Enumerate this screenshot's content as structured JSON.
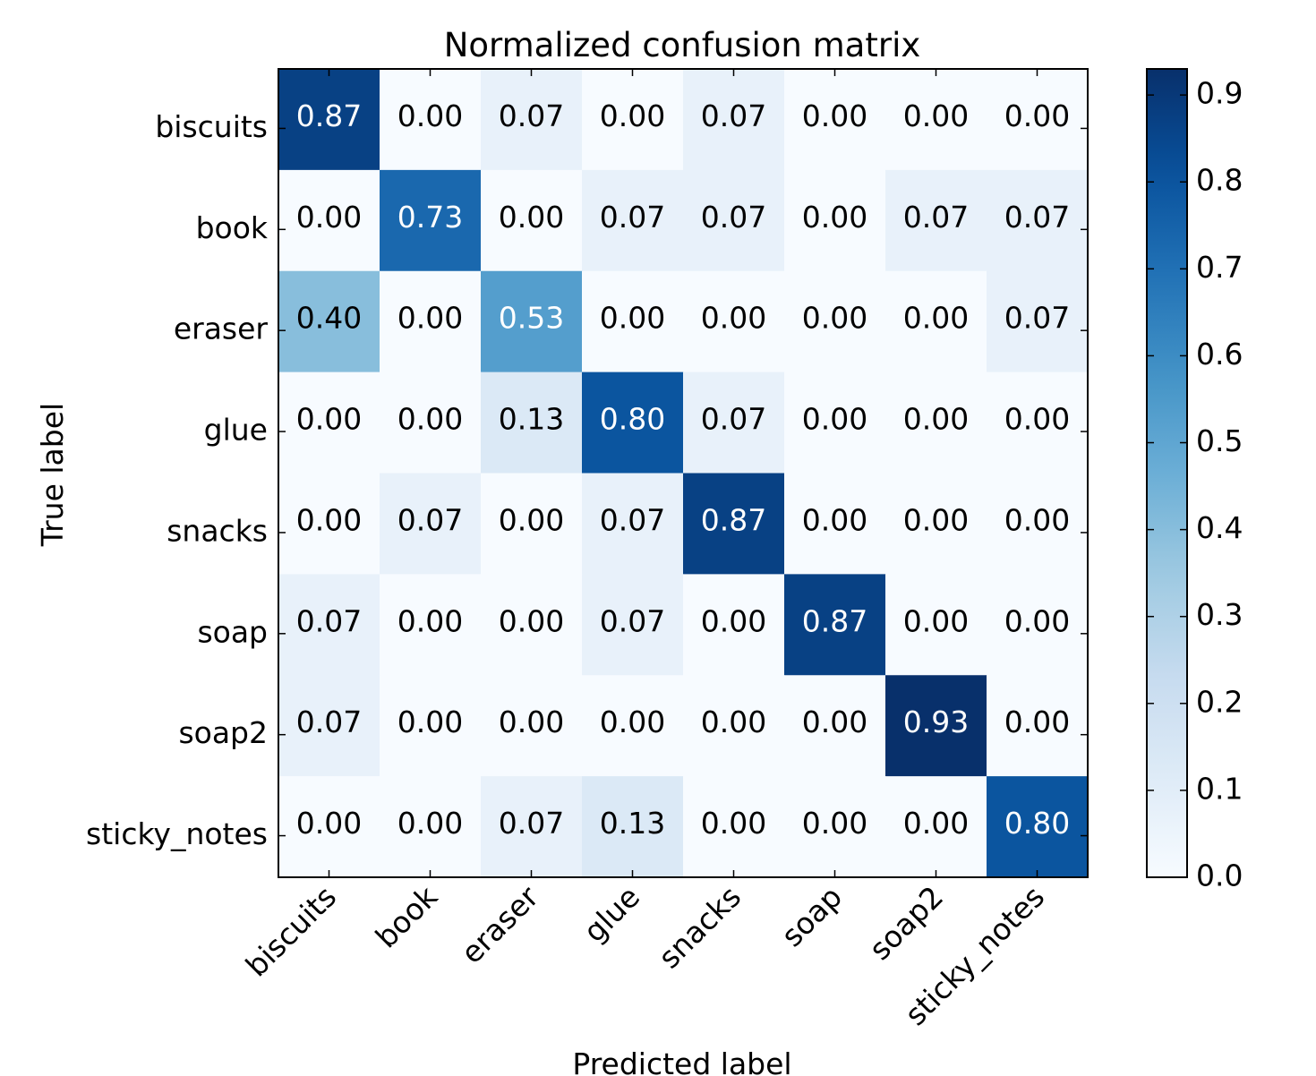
{
  "chart_data": {
    "type": "heatmap",
    "title": "Normalized confusion matrix",
    "xlabel": "Predicted label",
    "ylabel": "True label",
    "row_labels": [
      "biscuits",
      "book",
      "eraser",
      "glue",
      "snacks",
      "soap",
      "soap2",
      "sticky_notes"
    ],
    "col_labels": [
      "biscuits",
      "book",
      "eraser",
      "glue",
      "snacks",
      "soap",
      "soap2",
      "sticky_notes"
    ],
    "values": [
      [
        0.87,
        0.0,
        0.07,
        0.0,
        0.07,
        0.0,
        0.0,
        0.0
      ],
      [
        0.0,
        0.73,
        0.0,
        0.07,
        0.07,
        0.0,
        0.07,
        0.07
      ],
      [
        0.4,
        0.0,
        0.53,
        0.0,
        0.0,
        0.0,
        0.0,
        0.07
      ],
      [
        0.0,
        0.0,
        0.13,
        0.8,
        0.07,
        0.0,
        0.0,
        0.0
      ],
      [
        0.0,
        0.07,
        0.0,
        0.07,
        0.87,
        0.0,
        0.0,
        0.0
      ],
      [
        0.07,
        0.0,
        0.0,
        0.07,
        0.0,
        0.87,
        0.0,
        0.0
      ],
      [
        0.07,
        0.0,
        0.0,
        0.0,
        0.0,
        0.0,
        0.93,
        0.0
      ],
      [
        0.0,
        0.0,
        0.07,
        0.13,
        0.0,
        0.0,
        0.0,
        0.8
      ]
    ],
    "value_format": "0.00",
    "colormap": "Blues",
    "colorbar": {
      "range": [
        0.0,
        0.93
      ],
      "ticks": [
        "0.0",
        "0.1",
        "0.2",
        "0.3",
        "0.4",
        "0.5",
        "0.6",
        "0.7",
        "0.8",
        "0.9"
      ]
    },
    "text_color_light": "#ffffff",
    "text_color_dark": "#000000"
  }
}
